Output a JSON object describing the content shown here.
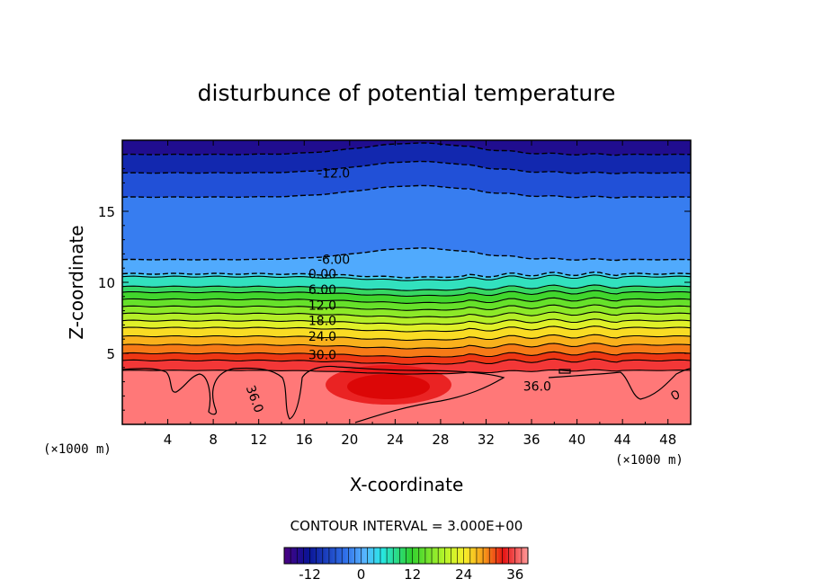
{
  "chart_data": {
    "type": "contour",
    "title": "disturbunce of potential temperature",
    "xlabel": "X-coordinate",
    "ylabel": "Z-coordinate",
    "x_unit": "(×1000 m)",
    "y_unit": "(×1000 m)",
    "xlim": [
      0,
      50
    ],
    "ylim": [
      0,
      20
    ],
    "x_ticks": [
      "4",
      "8",
      "12",
      "16",
      "20",
      "24",
      "28",
      "32",
      "36",
      "40",
      "44",
      "48"
    ],
    "y_ticks": [
      "5",
      "10",
      "15"
    ],
    "contour_interval_text": "CONTOUR INTERVAL = 3.000E+00",
    "contour_interval": 3.0,
    "levels": [
      {
        "z": 19.0,
        "value": -15.0,
        "dashed": true,
        "label": ""
      },
      {
        "z": 17.7,
        "value": -12.0,
        "dashed": true,
        "label": "-12.0"
      },
      {
        "z": 16.0,
        "value": -9.0,
        "dashed": true,
        "label": ""
      },
      {
        "z": 11.6,
        "value": -6.0,
        "dashed": true,
        "label": "-6.00"
      },
      {
        "z": 10.6,
        "value": -3.0,
        "dashed": true,
        "label": ""
      },
      {
        "z": 10.4,
        "value": 0.0,
        "dashed": false,
        "label": "0.00"
      },
      {
        "z": 9.7,
        "value": 3.0,
        "dashed": false,
        "label": ""
      },
      {
        "z": 9.3,
        "value": 6.0,
        "dashed": false,
        "label": "6.00"
      },
      {
        "z": 8.8,
        "value": 9.0,
        "dashed": false,
        "label": ""
      },
      {
        "z": 8.3,
        "value": 12.0,
        "dashed": false,
        "label": "12.0"
      },
      {
        "z": 7.8,
        "value": 15.0,
        "dashed": false,
        "label": ""
      },
      {
        "z": 7.3,
        "value": 18.0,
        "dashed": false,
        "label": "18.0"
      },
      {
        "z": 6.8,
        "value": 21.0,
        "dashed": false,
        "label": ""
      },
      {
        "z": 6.2,
        "value": 24.0,
        "dashed": false,
        "label": "24.0"
      },
      {
        "z": 5.6,
        "value": 27.0,
        "dashed": false,
        "label": ""
      },
      {
        "z": 5.0,
        "value": 30.0,
        "dashed": false,
        "label": "30.0"
      },
      {
        "z": 4.5,
        "value": 33.0,
        "dashed": false,
        "label": ""
      },
      {
        "z": 3.8,
        "value": 36.0,
        "dashed": false,
        "label": "36.0"
      }
    ],
    "contour_labels": [
      {
        "text": "-12.0",
        "x": 18.6,
        "z": 17.7
      },
      {
        "text": "-6.00",
        "x": 18.6,
        "z": 11.6
      },
      {
        "text": "0.00",
        "x": 17.6,
        "z": 10.6
      },
      {
        "text": "6.00",
        "x": 17.6,
        "z": 9.5
      },
      {
        "text": "12.0",
        "x": 17.6,
        "z": 8.4
      },
      {
        "text": "18.0",
        "x": 17.6,
        "z": 7.3
      },
      {
        "text": "24.0",
        "x": 17.6,
        "z": 6.2
      },
      {
        "text": "30.0",
        "x": 17.6,
        "z": 4.9
      },
      {
        "text": "36.0",
        "x": 11.3,
        "z": 2.0
      },
      {
        "text": "36.0",
        "x": 36.5,
        "z": 2.7
      }
    ],
    "colorbar": {
      "vmin": -18,
      "vmax": 39,
      "ticks": [
        "-12",
        "0",
        "12",
        "24",
        "36"
      ]
    },
    "colors": {
      "deep_blue": "#0a1496",
      "blue": "#2f6fe8",
      "sky": "#58b4ff",
      "cyan": "#27e6e6",
      "green": "#2fd12f",
      "yellow": "#f7ef2a",
      "orange": "#f79a1a",
      "red": "#e61414",
      "warm_low": "#ff5a5a"
    }
  }
}
